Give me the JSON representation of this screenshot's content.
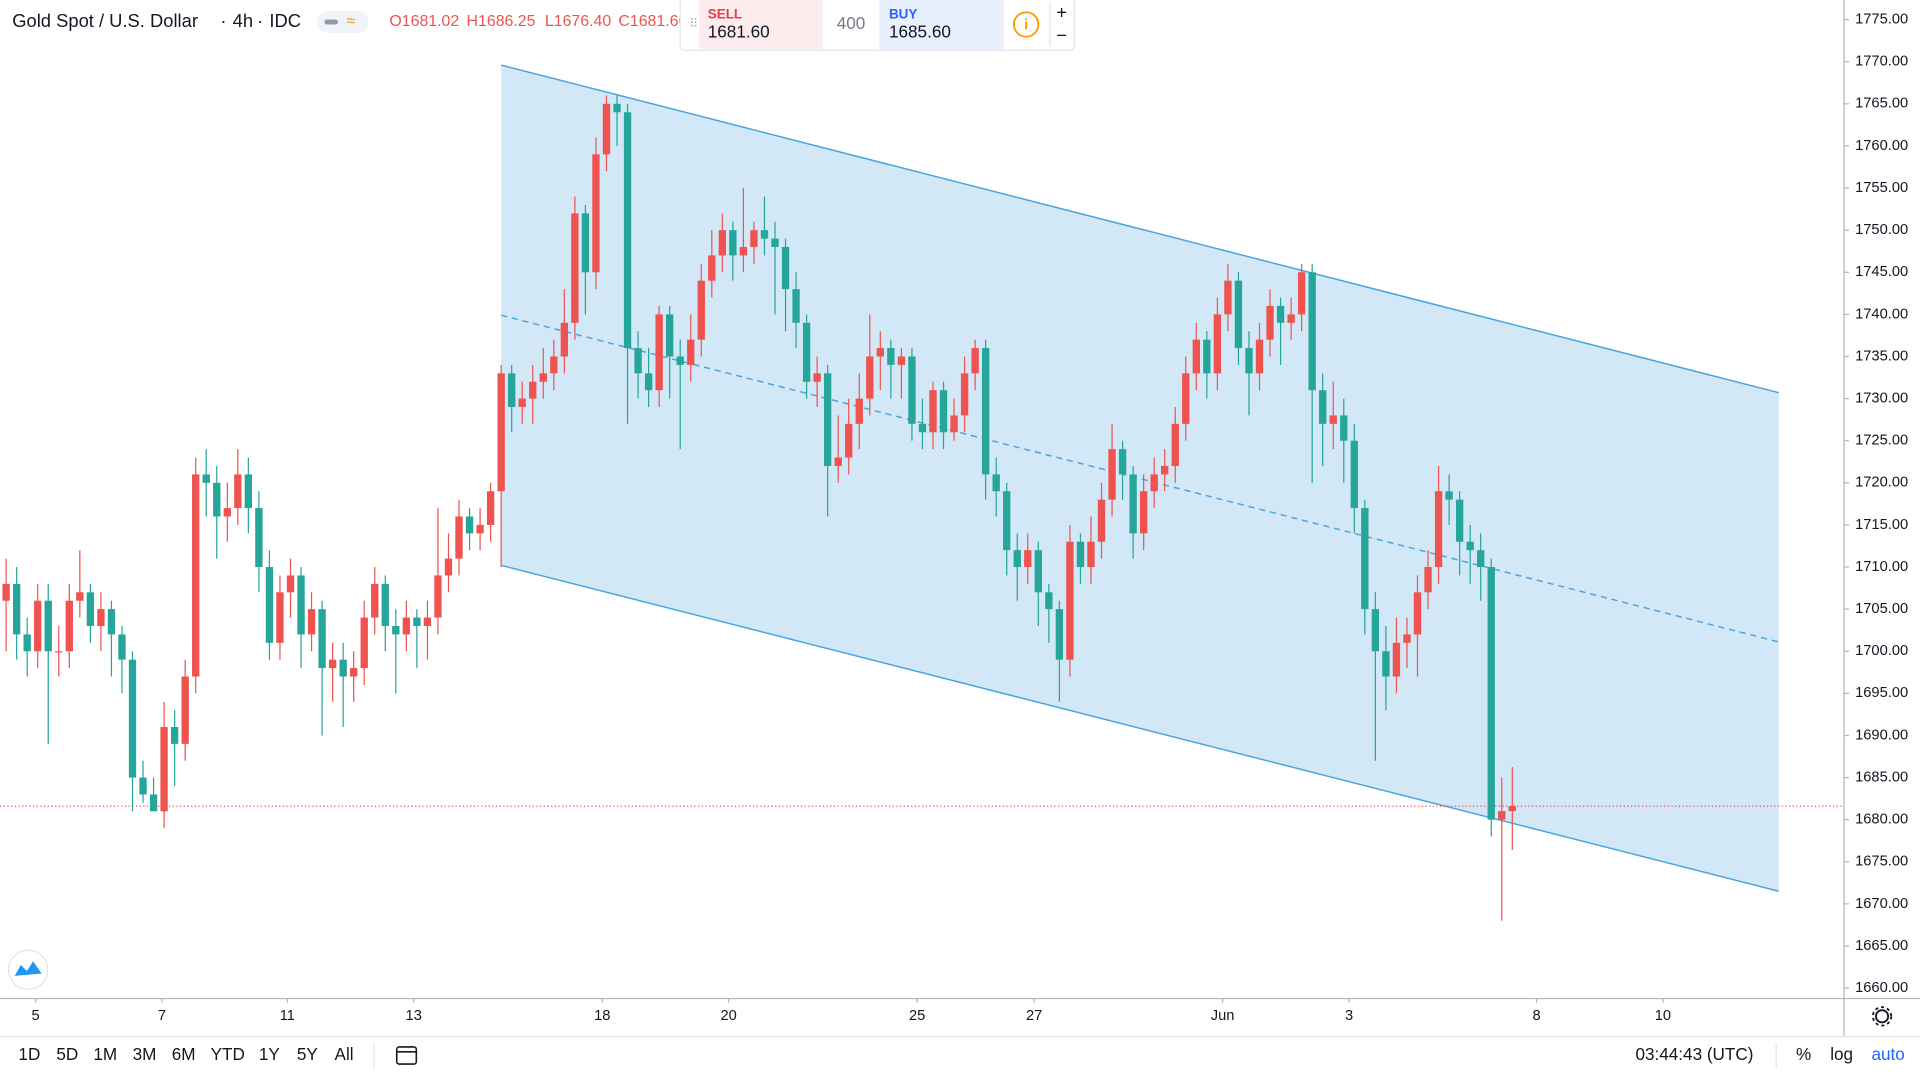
{
  "chart_data": {
    "type": "candlestick",
    "title": "Gold Spot / U.S. Dollar",
    "interval": "4h",
    "source": "IDC",
    "ohlc_header": [
      "O1681.02",
      "H1686.25",
      "L1676.40",
      "C1681.60"
    ],
    "up_color": "#ef5350",
    "down_color": "#26a69a",
    "ylim": [
      1658.83,
      1777.33
    ],
    "xlim": [
      -0.58,
      174.5
    ],
    "yticks": [
      {
        "value": 1660,
        "label": "1660.00"
      },
      {
        "value": 1665,
        "label": "1665.00"
      },
      {
        "value": 1670,
        "label": "1670.00"
      },
      {
        "value": 1675,
        "label": "1675.00"
      },
      {
        "value": 1680,
        "label": "1680.00"
      },
      {
        "value": 1685,
        "label": "1685.00"
      },
      {
        "value": 1690,
        "label": "1690.00"
      },
      {
        "value": 1695,
        "label": "1695.00"
      },
      {
        "value": 1700,
        "label": "1700.00"
      },
      {
        "value": 1705,
        "label": "1705.00"
      },
      {
        "value": 1710,
        "label": "1710.00"
      },
      {
        "value": 1715,
        "label": "1715.00"
      },
      {
        "value": 1720,
        "label": "1720.00"
      },
      {
        "value": 1725,
        "label": "1725.00"
      },
      {
        "value": 1730,
        "label": "1730.00"
      },
      {
        "value": 1735,
        "label": "1735.00"
      },
      {
        "value": 1740,
        "label": "1740.00"
      },
      {
        "value": 1745,
        "label": "1745.00"
      },
      {
        "value": 1750,
        "label": "1750.00"
      },
      {
        "value": 1755,
        "label": "1755.00"
      },
      {
        "value": 1760,
        "label": "1760.00"
      },
      {
        "value": 1765,
        "label": "1765.00"
      },
      {
        "value": 1770,
        "label": "1770.00"
      },
      {
        "value": 1775,
        "label": "1775.00"
      }
    ],
    "xticks": [
      {
        "value": 2.8,
        "label": "5"
      },
      {
        "value": 14.8,
        "label": "7"
      },
      {
        "value": 26.7,
        "label": "11"
      },
      {
        "value": 38.7,
        "label": "13"
      },
      {
        "value": 56.6,
        "label": "18"
      },
      {
        "value": 68.6,
        "label": "20"
      },
      {
        "value": 86.5,
        "label": "25"
      },
      {
        "value": 97.6,
        "label": "27"
      },
      {
        "value": 115.5,
        "label": "Jun"
      },
      {
        "value": 127.5,
        "label": "3"
      },
      {
        "value": 145.3,
        "label": "8"
      },
      {
        "value": 157.3,
        "label": "10"
      }
    ],
    "grid": false,
    "current_price": 1681.6,
    "current_price_color": "#f23645",
    "channel": {
      "color": "#4aa3df",
      "upper": [
        [
          47,
          1769.6
        ],
        [
          168.3,
          1730.7
        ]
      ],
      "mid": [
        [
          47,
          1739.9
        ],
        [
          168.3,
          1701.1
        ]
      ],
      "lower": [
        [
          47,
          1710.2
        ],
        [
          168.3,
          1671.5
        ]
      ]
    },
    "ohlc": [
      [
        1706,
        1711,
        1700,
        1708
      ],
      [
        1708,
        1710,
        1699,
        1702
      ],
      [
        1702,
        1704,
        1697,
        1700
      ],
      [
        1700,
        1708,
        1698,
        1706
      ],
      [
        1706,
        1708,
        1689,
        1700
      ],
      [
        1700,
        1703,
        1697,
        1700
      ],
      [
        1700,
        1708,
        1698,
        1706
      ],
      [
        1706,
        1712,
        1704,
        1707
      ],
      [
        1707,
        1708,
        1701,
        1703
      ],
      [
        1703,
        1707,
        1700,
        1705
      ],
      [
        1705,
        1706,
        1697,
        1702
      ],
      [
        1702,
        1703,
        1695,
        1699
      ],
      [
        1699,
        1700,
        1681,
        1685
      ],
      [
        1685,
        1687,
        1682,
        1683
      ],
      [
        1683,
        1685,
        1681,
        1681
      ],
      [
        1681,
        1694,
        1679,
        1691
      ],
      [
        1691,
        1693,
        1684,
        1689
      ],
      [
        1689,
        1699,
        1687,
        1697
      ],
      [
        1697,
        1723,
        1695,
        1721
      ],
      [
        1721,
        1724,
        1716,
        1720
      ],
      [
        1720,
        1722,
        1711,
        1716
      ],
      [
        1716,
        1720,
        1713,
        1717
      ],
      [
        1717,
        1724,
        1715,
        1721
      ],
      [
        1721,
        1723,
        1714,
        1717
      ],
      [
        1717,
        1719,
        1707,
        1710
      ],
      [
        1710,
        1712,
        1699,
        1701
      ],
      [
        1701,
        1709,
        1699,
        1707
      ],
      [
        1707,
        1711,
        1704,
        1709
      ],
      [
        1709,
        1710,
        1698,
        1702
      ],
      [
        1702,
        1707,
        1700,
        1705
      ],
      [
        1705,
        1706,
        1690,
        1698
      ],
      [
        1698,
        1701,
        1694,
        1699
      ],
      [
        1699,
        1701,
        1691,
        1697
      ],
      [
        1697,
        1700,
        1694,
        1698
      ],
      [
        1698,
        1706,
        1696,
        1704
      ],
      [
        1704,
        1710,
        1702,
        1708
      ],
      [
        1708,
        1709,
        1700,
        1703
      ],
      [
        1703,
        1705,
        1695,
        1702
      ],
      [
        1702,
        1706,
        1700,
        1704
      ],
      [
        1704,
        1705,
        1698,
        1703
      ],
      [
        1703,
        1706,
        1699,
        1704
      ],
      [
        1704,
        1717,
        1702,
        1709
      ],
      [
        1709,
        1714,
        1707,
        1711
      ],
      [
        1711,
        1718,
        1709,
        1716
      ],
      [
        1716,
        1717,
        1712,
        1714
      ],
      [
        1714,
        1717,
        1712,
        1715
      ],
      [
        1715,
        1720,
        1713,
        1719
      ],
      [
        1719,
        1734,
        1710,
        1733
      ],
      [
        1733,
        1734,
        1726,
        1729
      ],
      [
        1729,
        1732,
        1727,
        1730
      ],
      [
        1730,
        1734,
        1727,
        1732
      ],
      [
        1732,
        1736,
        1730,
        1733
      ],
      [
        1733,
        1737,
        1731,
        1735
      ],
      [
        1735,
        1743,
        1733,
        1739
      ],
      [
        1739,
        1754,
        1737,
        1752
      ],
      [
        1752,
        1753,
        1740,
        1745
      ],
      [
        1745,
        1761,
        1743,
        1759
      ],
      [
        1759,
        1766,
        1757,
        1765
      ],
      [
        1765,
        1766,
        1760,
        1764
      ],
      [
        1764,
        1765,
        1727,
        1736
      ],
      [
        1736,
        1738,
        1730,
        1733
      ],
      [
        1733,
        1736,
        1729,
        1731
      ],
      [
        1731,
        1741,
        1729,
        1740
      ],
      [
        1740,
        1741,
        1730,
        1735
      ],
      [
        1735,
        1737,
        1724,
        1734
      ],
      [
        1734,
        1740,
        1732,
        1737
      ],
      [
        1737,
        1746,
        1735,
        1744
      ],
      [
        1744,
        1750,
        1742,
        1747
      ],
      [
        1747,
        1752,
        1745,
        1750
      ],
      [
        1750,
        1751,
        1744,
        1747
      ],
      [
        1747,
        1755,
        1745,
        1748
      ],
      [
        1748,
        1751,
        1746,
        1750
      ],
      [
        1750,
        1754,
        1747,
        1749
      ],
      [
        1749,
        1751,
        1740,
        1748
      ],
      [
        1748,
        1749,
        1738,
        1743
      ],
      [
        1743,
        1745,
        1736,
        1739
      ],
      [
        1739,
        1740,
        1730,
        1732
      ],
      [
        1732,
        1735,
        1729,
        1733
      ],
      [
        1733,
        1734,
        1716,
        1722
      ],
      [
        1722,
        1728,
        1720,
        1723
      ],
      [
        1723,
        1730,
        1721,
        1727
      ],
      [
        1727,
        1733,
        1724,
        1730
      ],
      [
        1730,
        1740,
        1728,
        1735
      ],
      [
        1735,
        1738,
        1731,
        1736
      ],
      [
        1736,
        1737,
        1730,
        1734
      ],
      [
        1734,
        1736,
        1730,
        1735
      ],
      [
        1735,
        1736,
        1725,
        1727
      ],
      [
        1727,
        1730,
        1724,
        1726
      ],
      [
        1726,
        1732,
        1724,
        1731
      ],
      [
        1731,
        1732,
        1724,
        1726
      ],
      [
        1726,
        1730,
        1725,
        1728
      ],
      [
        1728,
        1735,
        1726,
        1733
      ],
      [
        1733,
        1737,
        1731,
        1736
      ],
      [
        1736,
        1737,
        1718,
        1721
      ],
      [
        1721,
        1723,
        1716,
        1719
      ],
      [
        1719,
        1720,
        1709,
        1712
      ],
      [
        1712,
        1714,
        1706,
        1710
      ],
      [
        1710,
        1714,
        1708,
        1712
      ],
      [
        1712,
        1713,
        1703,
        1707
      ],
      [
        1707,
        1708,
        1701,
        1705
      ],
      [
        1705,
        1706,
        1694,
        1699
      ],
      [
        1699,
        1715,
        1697,
        1713
      ],
      [
        1713,
        1714,
        1708,
        1710
      ],
      [
        1710,
        1716,
        1708,
        1713
      ],
      [
        1713,
        1720,
        1711,
        1718
      ],
      [
        1718,
        1727,
        1716,
        1724
      ],
      [
        1724,
        1725,
        1718,
        1721
      ],
      [
        1721,
        1722,
        1711,
        1714
      ],
      [
        1714,
        1721,
        1712,
        1719
      ],
      [
        1719,
        1723,
        1717,
        1721
      ],
      [
        1721,
        1724,
        1719,
        1722
      ],
      [
        1722,
        1729,
        1720,
        1727
      ],
      [
        1727,
        1735,
        1725,
        1733
      ],
      [
        1733,
        1739,
        1731,
        1737
      ],
      [
        1737,
        1738,
        1730,
        1733
      ],
      [
        1733,
        1742,
        1731,
        1740
      ],
      [
        1740,
        1746,
        1738,
        1744
      ],
      [
        1744,
        1745,
        1734,
        1736
      ],
      [
        1736,
        1738,
        1728,
        1733
      ],
      [
        1733,
        1739,
        1731,
        1737
      ],
      [
        1737,
        1743,
        1735,
        1741
      ],
      [
        1741,
        1742,
        1734,
        1739
      ],
      [
        1739,
        1742,
        1737,
        1740
      ],
      [
        1740,
        1746,
        1738,
        1745
      ],
      [
        1745,
        1746,
        1720,
        1731
      ],
      [
        1731,
        1733,
        1722,
        1727
      ],
      [
        1727,
        1732,
        1724,
        1728
      ],
      [
        1728,
        1730,
        1720,
        1725
      ],
      [
        1725,
        1727,
        1714,
        1717
      ],
      [
        1717,
        1718,
        1702,
        1705
      ],
      [
        1705,
        1707,
        1687,
        1700
      ],
      [
        1700,
        1703,
        1693,
        1697
      ],
      [
        1697,
        1704,
        1695,
        1701
      ],
      [
        1701,
        1704,
        1698,
        1702
      ],
      [
        1702,
        1709,
        1697,
        1707
      ],
      [
        1707,
        1712,
        1705,
        1710
      ],
      [
        1710,
        1722,
        1708,
        1719
      ],
      [
        1719,
        1721,
        1715,
        1718
      ],
      [
        1718,
        1719,
        1709,
        1713
      ],
      [
        1713,
        1715,
        1708,
        1712
      ],
      [
        1712,
        1714,
        1706,
        1710
      ],
      [
        1710,
        1711,
        1678,
        1680
      ],
      [
        1680,
        1685,
        1668,
        1681.02
      ],
      [
        1681.02,
        1686.25,
        1676.4,
        1681.6
      ]
    ]
  },
  "trade_panel": {
    "sell_label": "SELL",
    "sell_price": "1681.60",
    "quantity": "400",
    "buy_label": "BUY",
    "buy_price": "1685.60"
  },
  "toolbar": {
    "ranges": [
      "1D",
      "5D",
      "1M",
      "3M",
      "6M",
      "YTD",
      "1Y",
      "5Y",
      "All"
    ],
    "clock": "03:44:43 (UTC)",
    "options": [
      "%",
      "log",
      "auto"
    ]
  }
}
